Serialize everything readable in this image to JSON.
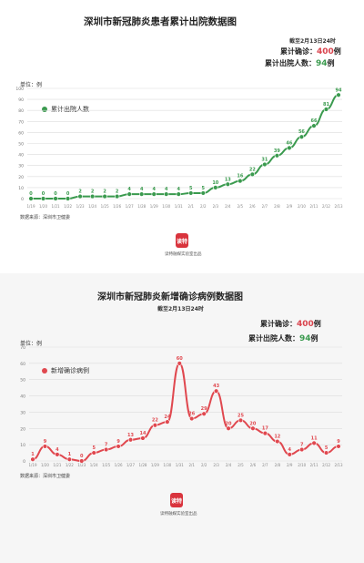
{
  "charts": [
    {
      "title": "深圳市新冠肺炎患者累计出院数据图",
      "as_of": "截至2月13日24时",
      "confirmed_label": "累计确诊：",
      "confirmed_value": "400",
      "confirmed_unit": "例",
      "discharged_label": "累计出院人数：",
      "discharged_value": "94",
      "discharged_unit": "例",
      "unit_label": "单位：例",
      "legend": "累计出院人数",
      "source": "数据来源：深圳市卫健委",
      "logo_text": "读特",
      "logo_caption": "读特融媒实验室出品",
      "color": "#3a9a4e"
    },
    {
      "title": "深圳市新冠肺炎新增确诊病例数据图",
      "as_of": "截至2月13日24时",
      "confirmed_label": "累计确诊：",
      "confirmed_value": "400",
      "confirmed_unit": "例",
      "discharged_label": "累计出院人数：",
      "discharged_value": "94",
      "discharged_unit": "例",
      "unit_label": "单位：例",
      "legend": "新增确诊病例",
      "source": "数据来源：深圳市卫健委",
      "logo_text": "读特",
      "logo_caption": "读特融媒实验室出品",
      "color": "#e0484f"
    }
  ],
  "chart_data": [
    {
      "type": "line",
      "x": [
        "1/19",
        "1/20",
        "1/21",
        "1/22",
        "1/23",
        "1/24",
        "1/25",
        "1/26",
        "1/27",
        "1/28",
        "1/29",
        "1/30",
        "1/31",
        "2/1",
        "2/2",
        "2/3",
        "2/4",
        "2/5",
        "2/6",
        "2/7",
        "2/8",
        "2/9",
        "2/10",
        "2/11",
        "2/12",
        "2/13"
      ],
      "series": [
        {
          "name": "累计出院人数",
          "values": [
            0,
            0,
            0,
            0,
            2,
            2,
            2,
            2,
            4,
            4,
            4,
            4,
            4,
            5,
            5,
            10,
            13,
            16,
            22,
            31,
            39,
            46,
            56,
            66,
            81,
            94
          ]
        }
      ],
      "ylim": [
        0,
        100
      ],
      "yticks": [
        0,
        10,
        20,
        30,
        40,
        50,
        60,
        70,
        80,
        90,
        100
      ],
      "grid": true,
      "legend_position": "top-left"
    },
    {
      "type": "line",
      "x": [
        "1/19",
        "1/20",
        "1/21",
        "1/22",
        "1/23",
        "1/24",
        "1/25",
        "1/26",
        "1/27",
        "1/28",
        "1/29",
        "1/30",
        "1/31",
        "2/1",
        "2/2",
        "2/3",
        "2/4",
        "2/5",
        "2/6",
        "2/7",
        "2/8",
        "2/9",
        "2/10",
        "2/11",
        "2/12",
        "2/13"
      ],
      "series": [
        {
          "name": "新增确诊病例",
          "values": [
            1,
            9,
            4,
            1,
            0,
            5,
            7,
            9,
            13,
            14,
            22,
            24,
            60,
            26,
            29,
            43,
            20,
            25,
            20,
            17,
            12,
            4,
            7,
            11,
            5,
            9
          ]
        }
      ],
      "ylim": [
        0,
        70
      ],
      "yticks": [
        0,
        10,
        20,
        30,
        40,
        50,
        60,
        70
      ],
      "grid": true,
      "legend_position": "top-left"
    }
  ]
}
